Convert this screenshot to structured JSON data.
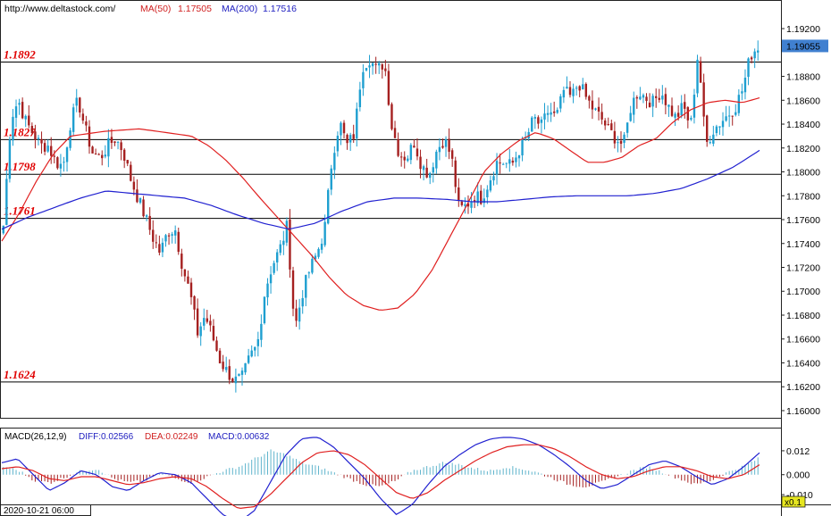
{
  "header": {
    "url": "http://www.deltastock.com/",
    "ma50_label": "MA(50)",
    "ma50_value": "1.17505",
    "ma200_label": "MA(200)",
    "ma200_value": "1.17516"
  },
  "macd_header": {
    "label": "MACD(26,12,9)",
    "diff": "DIFF:0.02566",
    "dea": "DEA:0.02249",
    "macd": "MACD:0.00632"
  },
  "bottom_timestamp": "2020-10-21 06:00",
  "zoom_label": "x0.1",
  "colors": {
    "bull": "#1e9fd0",
    "bear": "#a52020",
    "ma50": "#e02020",
    "ma200": "#2020d0",
    "level_text": "#e00000",
    "price_box": "#4080d0",
    "macd_hist": "#5fb4cc",
    "macd_box": "#d0d020"
  },
  "chart_data": [
    {
      "type": "candlestick",
      "ylim": [
        1.1594,
        1.1932
      ],
      "y_ticks": [
        "1.19200",
        "1.18800",
        "1.18600",
        "1.18400",
        "1.18200",
        "1.18000",
        "1.17800",
        "1.17600",
        "1.17400",
        "1.17200",
        "1.17000",
        "1.16800",
        "1.16600",
        "1.16400",
        "1.16200",
        "1.16000"
      ],
      "y_tick_values": [
        1.192,
        1.188,
        1.186,
        1.184,
        1.182,
        1.18,
        1.178,
        1.176,
        1.174,
        1.172,
        1.17,
        1.168,
        1.166,
        1.164,
        1.162,
        1.16
      ],
      "current_price": "1.19055",
      "current_price_value": 1.19055,
      "levels": [
        {
          "label": "1.1892",
          "value": 1.1892
        },
        {
          "label": "1.1827",
          "value": 1.1827
        },
        {
          "label": "1.1798",
          "value": 1.1798
        },
        {
          "label": "1.1761",
          "value": 1.1761
        },
        {
          "label": "1.1624",
          "value": 1.1624
        }
      ],
      "close_anchors": [
        1.1755,
        1.1845,
        1.186,
        1.1842,
        1.1832,
        1.1822,
        1.1822,
        1.1808,
        1.1805,
        1.1842,
        1.186,
        1.1835,
        1.1815,
        1.1812,
        1.1822,
        1.1828,
        1.1818,
        1.1795,
        1.1778,
        1.1762,
        1.1745,
        1.1732,
        1.175,
        1.1752,
        1.172,
        1.1698,
        1.1665,
        1.168,
        1.1662,
        1.1642,
        1.1632,
        1.1625,
        1.1628,
        1.1645,
        1.1655,
        1.17,
        1.1722,
        1.1735,
        1.1755,
        1.1668,
        1.1698,
        1.1718,
        1.1732,
        1.1752,
        1.1812,
        1.1842,
        1.1822,
        1.1832,
        1.1888,
        1.1895,
        1.1885,
        1.1892,
        1.1838,
        1.1815,
        1.1812,
        1.1825,
        1.1805,
        1.1798,
        1.1818,
        1.1828,
        1.1812,
        1.1768,
        1.1772,
        1.178,
        1.1778,
        1.1792,
        1.1808,
        1.1808,
        1.1805,
        1.1818,
        1.1828,
        1.1845,
        1.1838,
        1.1852,
        1.1845,
        1.1868,
        1.1862,
        1.1875,
        1.1862,
        1.1852,
        1.1845,
        1.1835,
        1.1828,
        1.1822,
        1.1855,
        1.1868,
        1.1862,
        1.1858,
        1.1868,
        1.1855,
        1.1845,
        1.1855,
        1.1838,
        1.1902,
        1.1822,
        1.1835,
        1.1842,
        1.1848,
        1.1855,
        1.187,
        1.1898,
        1.1905
      ],
      "ma50_anchors": [
        1.1742,
        1.1765,
        1.1792,
        1.1815,
        1.183,
        1.1832,
        1.1834,
        1.1835,
        1.1836,
        1.1834,
        1.1832,
        1.183,
        1.1822,
        1.181,
        1.1795,
        1.1778,
        1.1762,
        1.1746,
        1.173,
        1.1712,
        1.1697,
        1.1688,
        1.1684,
        1.1686,
        1.1698,
        1.1718,
        1.1745,
        1.1772,
        1.18,
        1.1815,
        1.1826,
        1.1833,
        1.1828,
        1.1818,
        1.1808,
        1.1808,
        1.1812,
        1.1822,
        1.1828,
        1.1842,
        1.1852,
        1.1858,
        1.186,
        1.1858,
        1.1862
      ],
      "ma200_anchors": [
        1.1752,
        1.1762,
        1.177,
        1.1778,
        1.1784,
        1.1782,
        1.178,
        1.1778,
        1.1772,
        1.1764,
        1.1757,
        1.1752,
        1.1757,
        1.1767,
        1.1775,
        1.1778,
        1.1778,
        1.1777,
        1.1775,
        1.1775,
        1.1777,
        1.1779,
        1.178,
        1.178,
        1.178,
        1.1782,
        1.1786,
        1.1794,
        1.1804,
        1.1818
      ]
    },
    {
      "type": "macd",
      "ylim": [
        -0.014,
        0.016
      ],
      "y_ticks": [
        "0.012",
        "0.000",
        "-0.010"
      ],
      "y_tick_values": [
        0.012,
        0.0,
        -0.01
      ],
      "hist_anchors": [
        0.004,
        0.002,
        -0.003,
        -0.004,
        -0.001,
        0.002,
        0.003,
        -0.002,
        -0.004,
        -0.003,
        0.001,
        -0.002,
        -0.004,
        -0.001,
        0.002,
        0.004,
        0.008,
        0.012,
        0.01,
        0.006,
        0.004,
        0.001,
        -0.002,
        -0.005,
        -0.006,
        -0.003,
        0.002,
        0.004,
        0.006,
        0.005,
        0.003,
        0.002,
        0.004,
        0.003,
        0.001,
        -0.002,
        -0.005,
        -0.006,
        -0.004,
        -0.001,
        0.002,
        0.004,
        0.001,
        -0.002,
        -0.005,
        -0.003,
        0.001,
        0.004,
        0.008
      ],
      "diff_anchors": [
        0.006,
        0.008,
        0.0,
        -0.008,
        -0.004,
        0.002,
        0.0,
        -0.006,
        -0.008,
        -0.003,
        0.001,
        0.0,
        -0.004,
        -0.012,
        -0.02,
        -0.024,
        -0.018,
        -0.004,
        0.01,
        0.018,
        0.019,
        0.014,
        0.006,
        -0.002,
        -0.012,
        -0.02,
        -0.015,
        -0.005,
        0.004,
        0.01,
        0.015,
        0.018,
        0.019,
        0.018,
        0.015,
        0.01,
        0.004,
        -0.003,
        -0.007,
        -0.005,
        0.0,
        0.005,
        0.007,
        0.004,
        -0.001,
        -0.005,
        -0.002,
        0.004,
        0.011
      ],
      "dea_anchors": [
        0.003,
        0.004,
        0.002,
        -0.002,
        -0.003,
        -0.001,
        -0.001,
        -0.003,
        -0.005,
        -0.004,
        -0.002,
        -0.001,
        -0.002,
        -0.006,
        -0.012,
        -0.017,
        -0.016,
        -0.01,
        -0.002,
        0.006,
        0.011,
        0.012,
        0.01,
        0.005,
        -0.002,
        -0.009,
        -0.012,
        -0.009,
        -0.003,
        0.002,
        0.007,
        0.011,
        0.014,
        0.015,
        0.015,
        0.013,
        0.009,
        0.004,
        0.0,
        -0.002,
        -0.001,
        0.002,
        0.004,
        0.004,
        0.002,
        -0.001,
        -0.002,
        0.0,
        0.005
      ]
    }
  ]
}
